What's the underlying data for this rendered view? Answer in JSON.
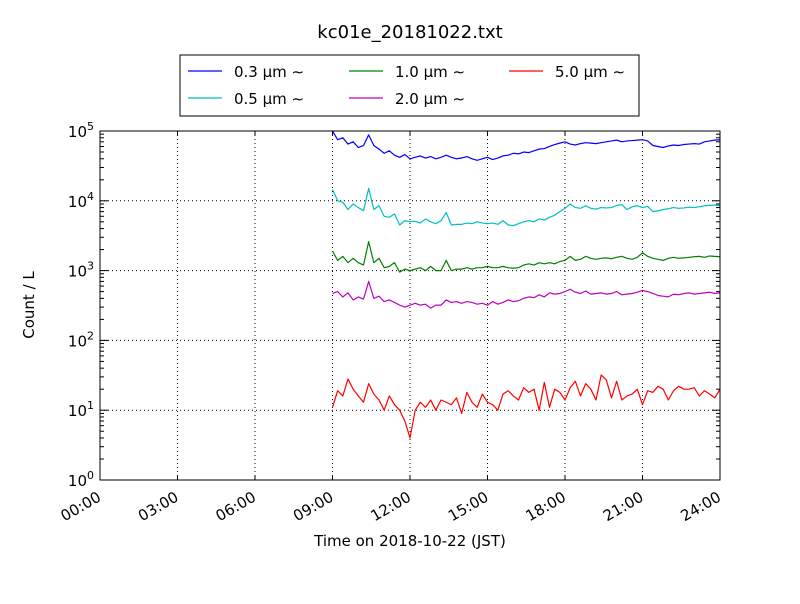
{
  "chart_data": {
    "type": "line",
    "title": "kc01e_20181022.txt",
    "xlabel": "Time on 2018-10-22 (JST)",
    "ylabel": "Count / L",
    "y_scale": "log",
    "xlim": [
      "00:00",
      "24:00"
    ],
    "ylim": [
      1,
      100000
    ],
    "x_ticks": [
      "00:00",
      "03:00",
      "06:00",
      "09:00",
      "12:00",
      "15:00",
      "18:00",
      "21:00",
      "24:00"
    ],
    "y_ticks": [
      {
        "base": "10",
        "exp": "0"
      },
      {
        "base": "10",
        "exp": "1"
      },
      {
        "base": "10",
        "exp": "2"
      },
      {
        "base": "10",
        "exp": "3"
      },
      {
        "base": "10",
        "exp": "4"
      },
      {
        "base": "10",
        "exp": "5"
      }
    ],
    "grid": true,
    "legend_position": "top-center",
    "x_hours": [
      9.0,
      9.2,
      9.4,
      9.6,
      9.8,
      10.0,
      10.2,
      10.4,
      10.6,
      10.8,
      11.0,
      11.2,
      11.4,
      11.6,
      11.8,
      12.0,
      12.2,
      12.4,
      12.6,
      12.8,
      13.0,
      13.2,
      13.4,
      13.6,
      13.8,
      14.0,
      14.2,
      14.4,
      14.6,
      14.8,
      15.0,
      15.2,
      15.4,
      15.6,
      15.8,
      16.0,
      16.2,
      16.4,
      16.6,
      16.8,
      17.0,
      17.2,
      17.4,
      17.6,
      17.8,
      18.0,
      18.2,
      18.4,
      18.6,
      18.8,
      19.0,
      19.2,
      19.4,
      19.6,
      19.8,
      20.0,
      20.2,
      20.4,
      20.6,
      20.8,
      21.0,
      21.2,
      21.4,
      21.6,
      21.8,
      22.0,
      22.2,
      22.4,
      22.6,
      22.8,
      23.0,
      23.2,
      23.4,
      23.6,
      23.8,
      24.0
    ],
    "series": [
      {
        "name": "0.3 μm ∼",
        "color": "#0000ff",
        "values": [
          100000,
          75000,
          80000,
          65000,
          70000,
          58000,
          62000,
          88000,
          62000,
          55000,
          48000,
          52000,
          45000,
          42000,
          46000,
          40000,
          42000,
          44000,
          41000,
          43000,
          40000,
          42000,
          45000,
          42000,
          40000,
          41000,
          43000,
          40000,
          38000,
          40000,
          42000,
          39000,
          41000,
          44000,
          45000,
          48000,
          47000,
          50000,
          49000,
          52000,
          55000,
          56000,
          60000,
          64000,
          67000,
          70000,
          65000,
          63000,
          66000,
          68000,
          67000,
          66000,
          68000,
          70000,
          72000,
          74000,
          70000,
          72000,
          73000,
          74000,
          75000,
          72000,
          62000,
          60000,
          58000,
          61000,
          63000,
          62000,
          64000,
          65000,
          66000,
          65000,
          70000,
          72000,
          74000,
          75000
        ]
      },
      {
        "name": "0.5 μm ∼",
        "color": "#00bfbf",
        "values": [
          14500,
          10000,
          9500,
          7500,
          9000,
          8000,
          7200,
          15000,
          7500,
          8500,
          6000,
          5800,
          6500,
          4500,
          5200,
          5000,
          5100,
          4800,
          5500,
          5000,
          4700,
          5200,
          6800,
          4500,
          4600,
          4600,
          4800,
          4700,
          5000,
          4800,
          4700,
          4800,
          4600,
          5200,
          4500,
          4400,
          4700,
          5000,
          5200,
          5000,
          5500,
          5300,
          5800,
          6200,
          7000,
          7800,
          9000,
          8000,
          7800,
          8500,
          7800,
          7600,
          8000,
          7900,
          8000,
          8600,
          8800,
          7500,
          8200,
          8500,
          8000,
          8300,
          7000,
          7200,
          7500,
          7700,
          8000,
          7800,
          7900,
          8100,
          8000,
          8200,
          8500,
          8600,
          8700,
          8500
        ]
      },
      {
        "name": "1.0 μm ∼",
        "color": "#008000",
        "values": [
          1900,
          1400,
          1600,
          1300,
          1500,
          1300,
          1200,
          2600,
          1300,
          1500,
          1100,
          1150,
          1300,
          950,
          1050,
          1000,
          1050,
          1100,
          1000,
          1150,
          1000,
          1000,
          1400,
          1000,
          1050,
          1050,
          1100,
          1050,
          1100,
          1100,
          1150,
          1100,
          1100,
          1150,
          1100,
          1080,
          1100,
          1200,
          1250,
          1200,
          1300,
          1250,
          1300,
          1250,
          1350,
          1400,
          1600,
          1400,
          1450,
          1600,
          1500,
          1450,
          1500,
          1520,
          1480,
          1550,
          1600,
          1500,
          1450,
          1550,
          1800,
          1600,
          1500,
          1450,
          1400,
          1500,
          1550,
          1500,
          1520,
          1550,
          1580,
          1600,
          1550,
          1620,
          1600,
          1580
        ]
      },
      {
        "name": "2.0 μm ∼",
        "color": "#bf00bf",
        "values": [
          470,
          500,
          420,
          480,
          380,
          420,
          390,
          700,
          400,
          430,
          360,
          380,
          350,
          320,
          300,
          320,
          340,
          320,
          330,
          290,
          320,
          320,
          380,
          350,
          360,
          340,
          360,
          350,
          330,
          340,
          320,
          360,
          330,
          350,
          380,
          360,
          370,
          400,
          420,
          410,
          450,
          420,
          480,
          460,
          470,
          500,
          540,
          490,
          470,
          510,
          460,
          470,
          480,
          460,
          470,
          500,
          450,
          460,
          470,
          490,
          520,
          500,
          470,
          440,
          430,
          420,
          460,
          450,
          470,
          480,
          460,
          470,
          480,
          490,
          470,
          480
        ]
      },
      {
        "name": "5.0 μm ∼",
        "color": "#ff0000",
        "values": [
          11,
          19,
          16,
          28,
          20,
          16,
          13,
          24,
          17,
          14,
          10,
          16,
          12,
          10,
          7,
          4,
          10,
          13,
          11,
          14,
          10,
          14,
          13,
          12,
          15,
          9,
          18,
          13,
          11,
          17,
          13,
          12,
          10,
          17,
          19,
          16,
          14,
          21,
          18,
          20,
          10,
          25,
          11,
          20,
          18,
          14,
          21,
          26,
          16,
          24,
          20,
          14,
          32,
          27,
          15,
          26,
          14,
          16,
          17,
          20,
          12,
          19,
          18,
          22,
          20,
          14,
          19,
          22,
          20,
          20,
          21,
          16,
          19,
          17,
          15,
          20
        ]
      }
    ]
  }
}
